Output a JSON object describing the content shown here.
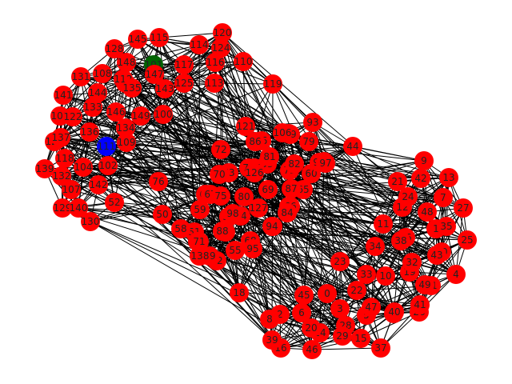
{
  "graph": {
    "colors": {
      "default": "#ff0000",
      "highlight_green": "#006400",
      "highlight_blue": "#0000ff",
      "edge": "#000000",
      "label": "#222222"
    },
    "highlighted": {
      "101": "green",
      "111": "blue"
    },
    "labels": [
      "0",
      "1",
      "2",
      "3",
      "4",
      "5",
      "6",
      "7",
      "8",
      "9",
      "10",
      "11",
      "12",
      "13",
      "14",
      "15",
      "16",
      "17",
      "18",
      "19",
      "20",
      "21",
      "22",
      "23",
      "24",
      "25",
      "26",
      "27",
      "28",
      "29",
      "30",
      "31",
      "32",
      "33",
      "34",
      "35",
      "36",
      "37",
      "38",
      "39",
      "40",
      "41",
      "42",
      "43",
      "44",
      "45",
      "46",
      "47",
      "48",
      "49",
      "50",
      "51",
      "52",
      "53",
      "54",
      "55",
      "56",
      "57",
      "58",
      "59",
      "60",
      "61",
      "62",
      "63",
      "64",
      "65",
      "66",
      "67",
      "68",
      "69",
      "70",
      "71",
      "72",
      "73",
      "74",
      "75",
      "76",
      "77",
      "78",
      "79",
      "80",
      "81",
      "82",
      "83",
      "84",
      "85",
      "86",
      "87",
      "88",
      "89",
      "90",
      "91",
      "92",
      "93",
      "94",
      "95",
      "96",
      "97",
      "98",
      "99",
      "100",
      "101",
      "102",
      "103",
      "104",
      "105",
      "106",
      "107",
      "108",
      "109",
      "110",
      "111",
      "112",
      "113",
      "114",
      "115",
      "116",
      "117",
      "118",
      "119",
      "120",
      "121",
      "122",
      "123",
      "124",
      "125",
      "126",
      "127",
      "128",
      "129",
      "130",
      "131",
      "132",
      "133",
      "134",
      "135",
      "136",
      "137",
      "138",
      "139",
      "140",
      "141",
      "142",
      "143",
      "144",
      "145",
      "146",
      "147",
      "148",
      "149"
    ]
  }
}
